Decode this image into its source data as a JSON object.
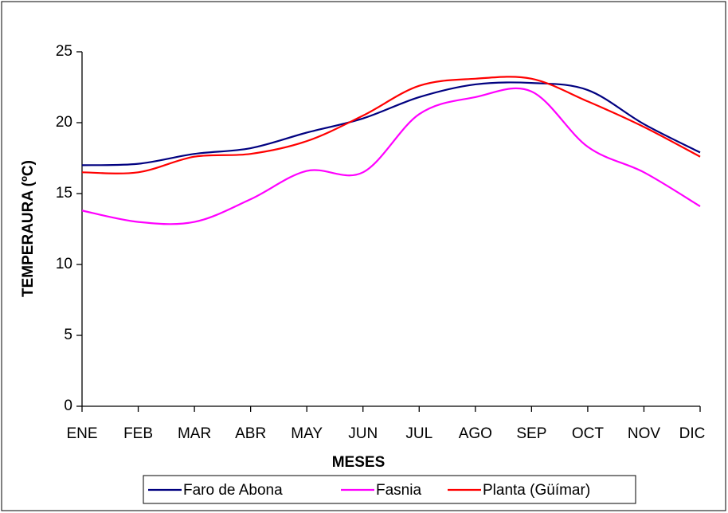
{
  "chart_data": {
    "type": "line",
    "x_label": "MESES",
    "y_label": "TEMPERAURA (ºC)",
    "categories": [
      "ENE",
      "FEB",
      "MAR",
      "ABR",
      "MAY",
      "JUN",
      "JUL",
      "AGO",
      "SEP",
      "OCT",
      "NOV",
      "DIC"
    ],
    "series": [
      {
        "name": "Faro de Abona",
        "color": "#000080",
        "values": [
          17.0,
          17.1,
          17.8,
          18.2,
          19.3,
          20.3,
          21.8,
          22.7,
          22.8,
          22.3,
          19.9,
          17.9
        ]
      },
      {
        "name": "Fasnia",
        "color": "#ff00ff",
        "values": [
          13.8,
          13.0,
          13.0,
          14.6,
          16.6,
          16.5,
          20.6,
          21.8,
          22.2,
          18.3,
          16.5,
          14.1
        ]
      },
      {
        "name": "Planta (Güímar)",
        "color": "#ff0000",
        "values": [
          16.5,
          16.5,
          17.6,
          17.8,
          18.7,
          20.5,
          22.6,
          23.1,
          23.1,
          21.5,
          19.7,
          17.6
        ]
      }
    ],
    "ylim": [
      0,
      25
    ],
    "yticks": [
      0,
      5,
      10,
      15,
      20,
      25
    ],
    "smooth": true,
    "legend": "bottom"
  }
}
